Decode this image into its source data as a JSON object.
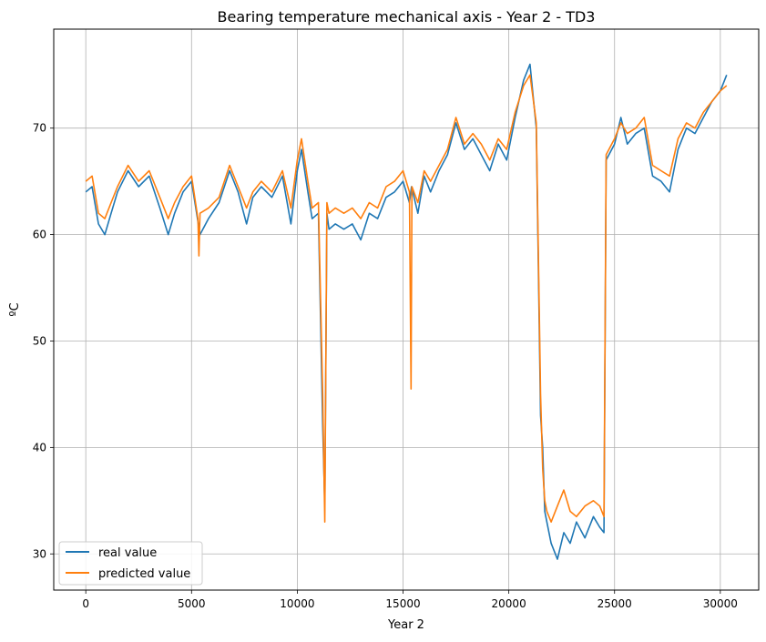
{
  "chart_data": {
    "type": "line",
    "title": "Bearing temperature mechanical axis - Year 2 - TD3",
    "xlabel": "Year 2",
    "ylabel": "ºC",
    "xlim": [
      -1515,
      31815
    ],
    "ylim": [
      26.6,
      79.3
    ],
    "xticks": [
      0,
      5000,
      10000,
      15000,
      20000,
      25000,
      30000
    ],
    "yticks": [
      30,
      40,
      50,
      60,
      70
    ],
    "grid": true,
    "legend_position": "lower left",
    "series": [
      {
        "name": "real value",
        "color": "#1f77b4",
        "x": [
          0,
          300,
          600,
          900,
          1200,
          1500,
          2000,
          2500,
          3000,
          3500,
          3900,
          4200,
          4600,
          5000,
          5400,
          5800,
          6300,
          6800,
          7200,
          7600,
          7900,
          8300,
          8800,
          9300,
          9700,
          10000,
          10200,
          10500,
          10700,
          11000,
          11200,
          11300,
          11400,
          11500,
          11800,
          12200,
          12600,
          13000,
          13400,
          13800,
          14200,
          14600,
          15000,
          15300,
          15400,
          15700,
          16000,
          16300,
          16700,
          17100,
          17500,
          17900,
          18300,
          18700,
          19100,
          19500,
          19900,
          20300,
          20700,
          21000,
          21300,
          21500,
          21600,
          21700,
          21800,
          22000,
          22300,
          22600,
          22900,
          23200,
          23600,
          24000,
          24300,
          24500,
          24600,
          25000,
          25300,
          25600,
          26000,
          26400,
          26800,
          27200,
          27600,
          28000,
          28400,
          28800,
          29200,
          29600,
          30000,
          30300
        ],
        "values": [
          64.0,
          64.5,
          61.0,
          60.0,
          62.0,
          64.0,
          66.0,
          64.5,
          65.5,
          62.5,
          60.0,
          62.0,
          64.0,
          65.0,
          60.0,
          61.5,
          63.0,
          66.0,
          64.0,
          61.0,
          63.5,
          64.5,
          63.5,
          65.5,
          61.0,
          66.0,
          68.0,
          64.0,
          61.5,
          62.0,
          42.0,
          34.5,
          62.0,
          60.5,
          61.0,
          60.5,
          61.0,
          59.5,
          62.0,
          61.5,
          63.5,
          64.0,
          65.0,
          63.0,
          64.5,
          62.0,
          65.5,
          64.0,
          66.0,
          67.5,
          70.5,
          68.0,
          69.0,
          67.5,
          66.0,
          68.5,
          67.0,
          71.0,
          74.5,
          76.0,
          70.0,
          43.0,
          40.0,
          34.0,
          33.0,
          31.0,
          29.5,
          32.0,
          31.0,
          33.0,
          31.5,
          33.5,
          32.5,
          32.0,
          67.0,
          68.5,
          71.0,
          68.5,
          69.5,
          70.0,
          65.5,
          65.0,
          64.0,
          68.0,
          70.0,
          69.5,
          71.0,
          72.5,
          73.5,
          75.0
        ]
      },
      {
        "name": "predicted value",
        "color": "#ff7f0e",
        "x": [
          0,
          300,
          600,
          900,
          1200,
          1500,
          2000,
          2500,
          3000,
          3500,
          3900,
          4200,
          4600,
          5000,
          5300,
          5350,
          5400,
          5800,
          6300,
          6800,
          7200,
          7600,
          7900,
          8300,
          8800,
          9300,
          9700,
          10000,
          10200,
          10500,
          10700,
          11000,
          11200,
          11300,
          11400,
          11500,
          11800,
          12200,
          12600,
          13000,
          13400,
          13800,
          14200,
          14600,
          15000,
          15300,
          15380,
          15420,
          15700,
          16000,
          16300,
          16700,
          17100,
          17500,
          17900,
          18300,
          18700,
          19100,
          19500,
          19900,
          20300,
          20700,
          21000,
          21300,
          21500,
          21600,
          21700,
          21800,
          22000,
          22300,
          22600,
          22900,
          23200,
          23600,
          24000,
          24300,
          24500,
          24600,
          25000,
          25300,
          25600,
          26000,
          26400,
          26800,
          27200,
          27600,
          28000,
          28400,
          28800,
          29200,
          29600,
          30000,
          30300
        ],
        "values": [
          65.0,
          65.5,
          62.0,
          61.5,
          63.0,
          64.5,
          66.5,
          65.0,
          66.0,
          63.5,
          61.5,
          63.0,
          64.5,
          65.5,
          61.5,
          58.0,
          62.0,
          62.5,
          63.5,
          66.5,
          64.5,
          62.5,
          64.0,
          65.0,
          64.0,
          66.0,
          62.5,
          67.0,
          69.0,
          65.0,
          62.5,
          63.0,
          45.0,
          33.0,
          63.0,
          62.0,
          62.5,
          62.0,
          62.5,
          61.5,
          63.0,
          62.5,
          64.5,
          65.0,
          66.0,
          64.0,
          45.5,
          64.5,
          63.0,
          66.0,
          65.0,
          66.5,
          68.0,
          71.0,
          68.5,
          69.5,
          68.5,
          67.0,
          69.0,
          68.0,
          71.5,
          74.0,
          75.0,
          70.5,
          45.0,
          38.0,
          35.0,
          34.0,
          33.0,
          34.5,
          36.0,
          34.0,
          33.5,
          34.5,
          35.0,
          34.5,
          33.5,
          67.5,
          69.0,
          70.5,
          69.5,
          70.0,
          71.0,
          66.5,
          66.0,
          65.5,
          69.0,
          70.5,
          70.0,
          71.5,
          72.5,
          73.5,
          74.0
        ]
      }
    ]
  }
}
